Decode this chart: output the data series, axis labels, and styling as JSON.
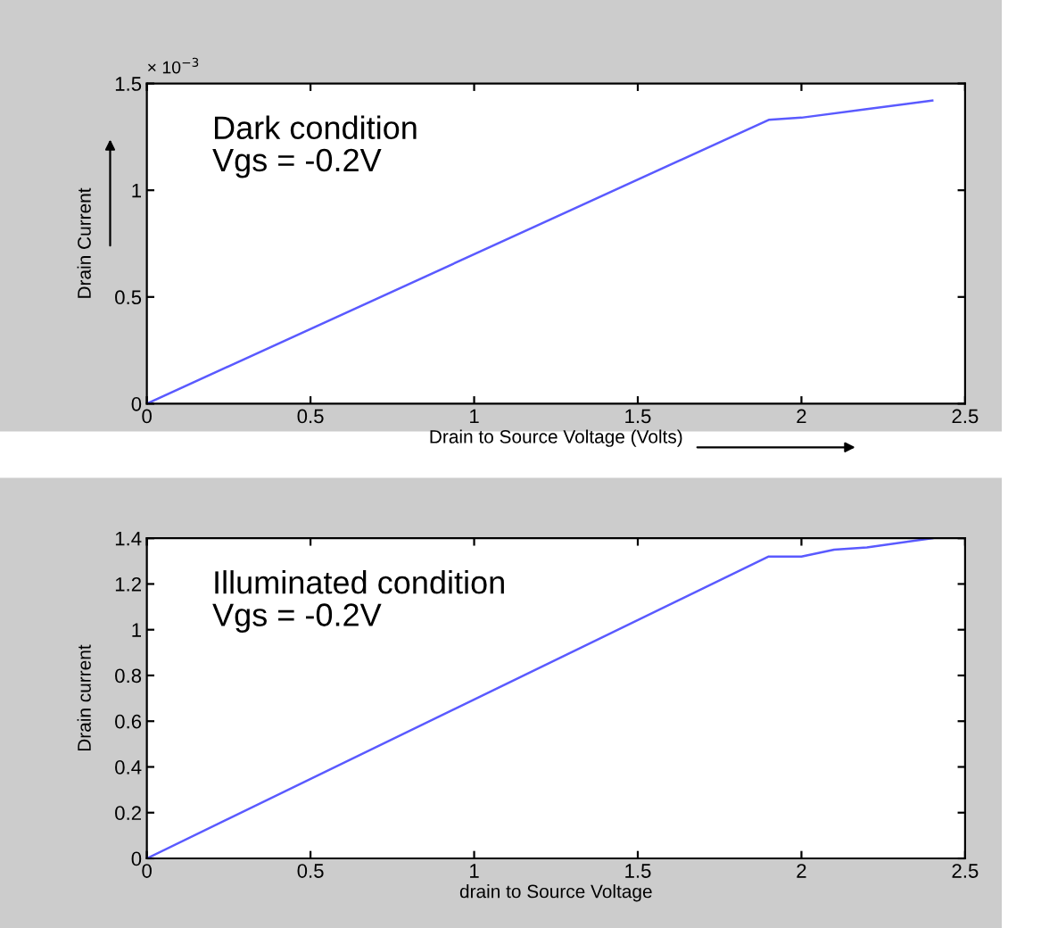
{
  "chart_data": [
    {
      "type": "line",
      "xlabel": "Drain to Source Voltage (Volts)",
      "ylabel": "Drain Current",
      "annotations": [
        "Dark condition\nVgs = -0.2V",
        "× 10$^{−3}$"
      ],
      "x": [
        0,
        1.9,
        2.0,
        2.2,
        2.4
      ],
      "series": [
        {
          "color": "#5a5aff",
          "values": [
            0,
            1.33,
            1.34,
            1.38,
            1.42
          ]
        }
      ],
      "xlim": [
        0,
        2.5
      ],
      "xticks": [
        0,
        0.5,
        1,
        1.5,
        2,
        2.5
      ],
      "ylim": [
        0,
        1.5
      ],
      "yticks": [
        0,
        0.5,
        1,
        1.5
      ],
      "grid": false,
      "legend": false
    },
    {
      "type": "line",
      "xlabel": "drain to Source Voltage",
      "ylabel": "Drain current",
      "annotations": [
        "Illuminated condition\nVgs = -0.2V"
      ],
      "x": [
        0,
        1.9,
        2.0,
        2.1,
        2.2,
        2.4
      ],
      "series": [
        {
          "color": "#5a5aff",
          "values": [
            0,
            1.32,
            1.32,
            1.35,
            1.36,
            1.4
          ]
        }
      ],
      "xlim": [
        0,
        2.5
      ],
      "xticks": [
        0,
        0.5,
        1,
        1.5,
        2,
        2.5
      ],
      "ylim": [
        0,
        1.4
      ],
      "yticks": [
        0,
        0.2,
        0.4,
        0.6,
        0.8,
        1,
        1.2,
        1.4
      ],
      "grid": false,
      "legend": false
    }
  ]
}
